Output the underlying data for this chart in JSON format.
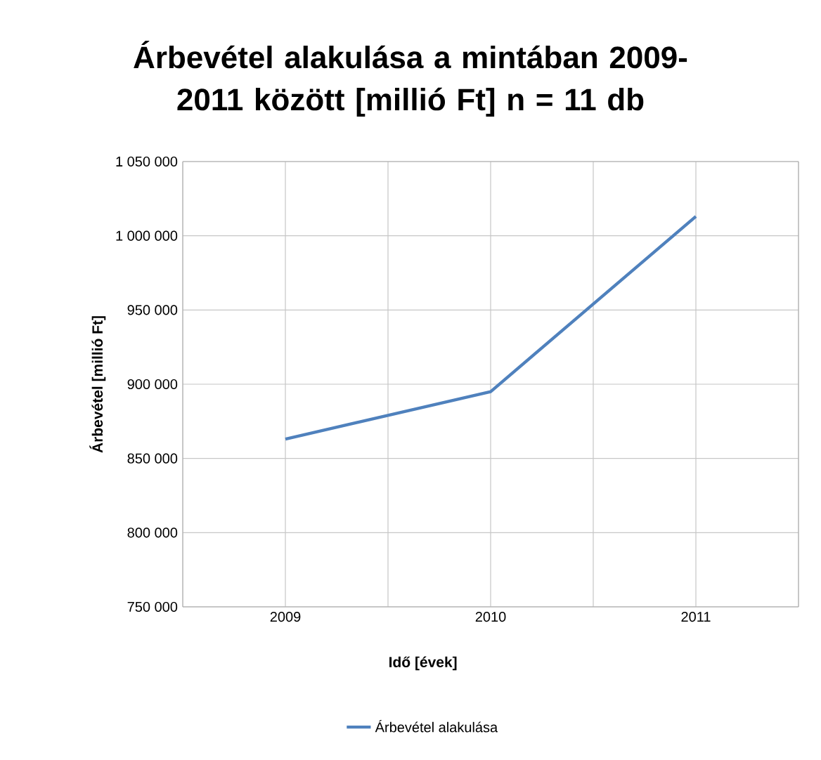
{
  "chart_data": {
    "type": "line",
    "title": "Árbevétel alakulása a mintában 2009-2011 között [millió Ft] n = 11 db",
    "xlabel": "Idő [évek]",
    "ylabel": "Árbevétel [millió Ft]",
    "categories": [
      "2009",
      "2010",
      "2011"
    ],
    "series": [
      {
        "name": "Árbevétel alakulása",
        "color": "#4f81bd",
        "values": [
          863000,
          895000,
          1013000
        ]
      }
    ],
    "ylim": [
      750000,
      1050000
    ],
    "yticks": [
      {
        "value": 750000,
        "label": "750 000"
      },
      {
        "value": 800000,
        "label": "800 000"
      },
      {
        "value": 850000,
        "label": "850 000"
      },
      {
        "value": 900000,
        "label": "900 000"
      },
      {
        "value": 950000,
        "label": "950 000"
      },
      {
        "value": 1000000,
        "label": "1 000 000"
      },
      {
        "value": 1050000,
        "label": "1 050 000"
      }
    ],
    "grid": true,
    "legend": "bottom",
    "marker": "none",
    "line_style": "solid"
  }
}
